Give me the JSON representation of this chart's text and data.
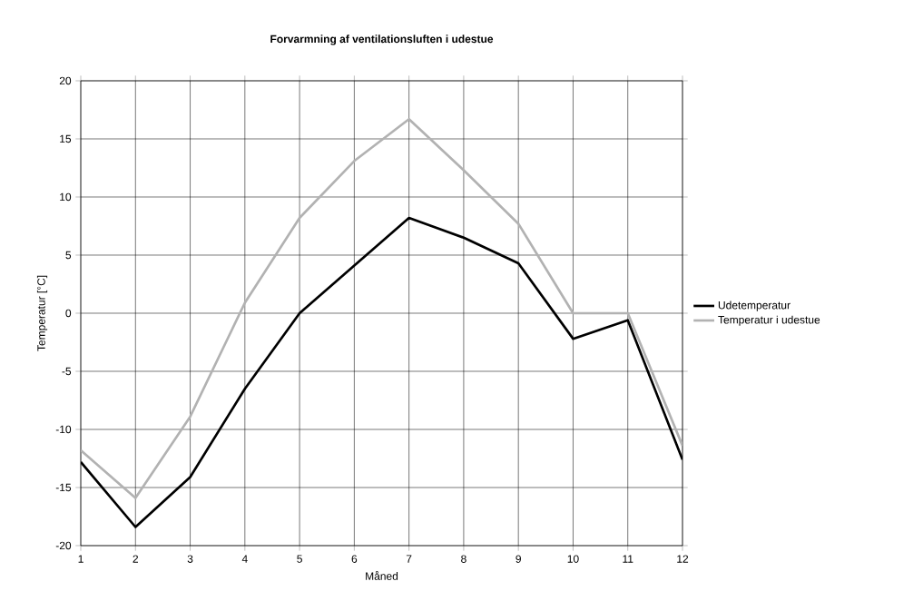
{
  "chart_data": {
    "type": "line",
    "title": "Forvarmning af ventilationsluften i udestue",
    "xlabel": "Måned",
    "ylabel": "Temperatur [°C]",
    "x": [
      1,
      2,
      3,
      4,
      5,
      6,
      7,
      8,
      9,
      10,
      11,
      12
    ],
    "series": [
      {
        "name": "Udetemperatur",
        "color": "#000000",
        "values": [
          -12.8,
          -18.4,
          -14.1,
          -6.5,
          0,
          4.1,
          8.2,
          6.5,
          4.3,
          -2.2,
          -0.6,
          -12.6
        ]
      },
      {
        "name": "Temperatur i udestue",
        "color": "#b2b2b2",
        "values": [
          -11.8,
          -15.9,
          -8.9,
          0.9,
          8.2,
          13.1,
          16.7,
          12.3,
          7.7,
          0,
          0,
          -11.4
        ]
      }
    ],
    "xlim": [
      1,
      12
    ],
    "xticks": [
      1,
      2,
      3,
      4,
      5,
      6,
      7,
      8,
      9,
      10,
      11,
      12
    ],
    "ylim": [
      -20,
      20
    ],
    "yticks": [
      -20,
      -15,
      -10,
      -5,
      0,
      5,
      10,
      15,
      20
    ],
    "grid": true,
    "legend": "right",
    "marker": "none",
    "line_style": "solid"
  }
}
